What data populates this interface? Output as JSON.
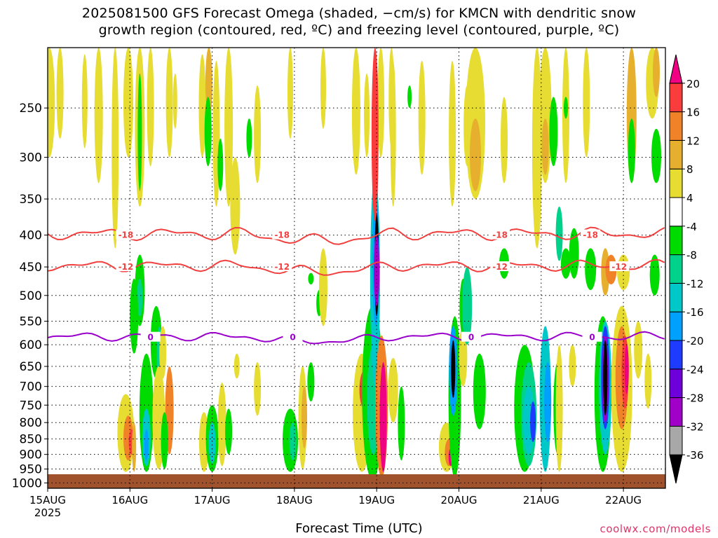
{
  "title_line1": "2025081500 GFS Forecast Omega (shaded, −cm/s) for KMCN with dendritic snow",
  "title_line2": "growth region (contoured, red, ºC) and freezing level (contoured, purple, ºC)",
  "x_axis_label": "Forecast Time (UTC)",
  "credit": "coolwx.com/models",
  "chart_data": {
    "type": "heatmap",
    "title": "2025081500 GFS Forecast Omega (shaded, −cm/s) for KMCN with dendritic snow growth region (contoured, red, ºC) and freezing level (contoured, purple, ºC)",
    "xlabel": "Forecast Time (UTC)",
    "ylabel": "",
    "x_ticks": [
      "15AUG",
      "16AUG",
      "17AUG",
      "18AUG",
      "19AUG",
      "20AUG",
      "21AUG",
      "22AUG"
    ],
    "x_year_label": "2025",
    "x_range_days": [
      0,
      7.5
    ],
    "y_ticks": [
      250,
      300,
      350,
      400,
      450,
      500,
      550,
      600,
      650,
      700,
      750,
      800,
      850,
      900,
      950,
      1000
    ],
    "y_range_hPa": [
      200,
      1020
    ],
    "grid": true,
    "colorbar": {
      "levels": [
        -36,
        -32,
        -28,
        -24,
        -20,
        -16,
        -12,
        -8,
        -4,
        4,
        8,
        12,
        16,
        20
      ],
      "colors": [
        "#000000",
        "#a8a8a8",
        "#a000c8",
        "#6e00dc",
        "#1e3cff",
        "#00a0ff",
        "#00c8c8",
        "#00d28c",
        "#00dc00",
        "#ffffff",
        "#e6dc32",
        "#e6af2d",
        "#f08228",
        "#fa3c3c",
        "#f00082"
      ]
    },
    "contours": [
      {
        "label": "-18",
        "color": "#f04040",
        "approx_pressure_hPa": 398,
        "label_x_days": [
          0.95,
          2.85,
          5.5,
          6.6
        ]
      },
      {
        "label": "-12",
        "color": "#f04040",
        "approx_pressure_hPa": 448,
        "label_x_days": [
          0.95,
          2.85,
          5.5,
          6.95
        ]
      },
      {
        "label": "0",
        "color": "#9900cc",
        "approx_pressure_hPa": 582,
        "label_x_days": [
          1.25,
          2.98,
          5.15,
          6.62
        ]
      }
    ],
    "upward_motion_maxima": [
      {
        "x_day": 3.98,
        "p_top": 320,
        "p_bottom": 990,
        "min_value": -36
      },
      {
        "x_day": 4.92,
        "p_top": 580,
        "p_bottom": 720,
        "min_value": -36
      },
      {
        "x_day": 6.78,
        "p_top": 560,
        "p_bottom": 790,
        "min_value": -36
      }
    ]
  }
}
